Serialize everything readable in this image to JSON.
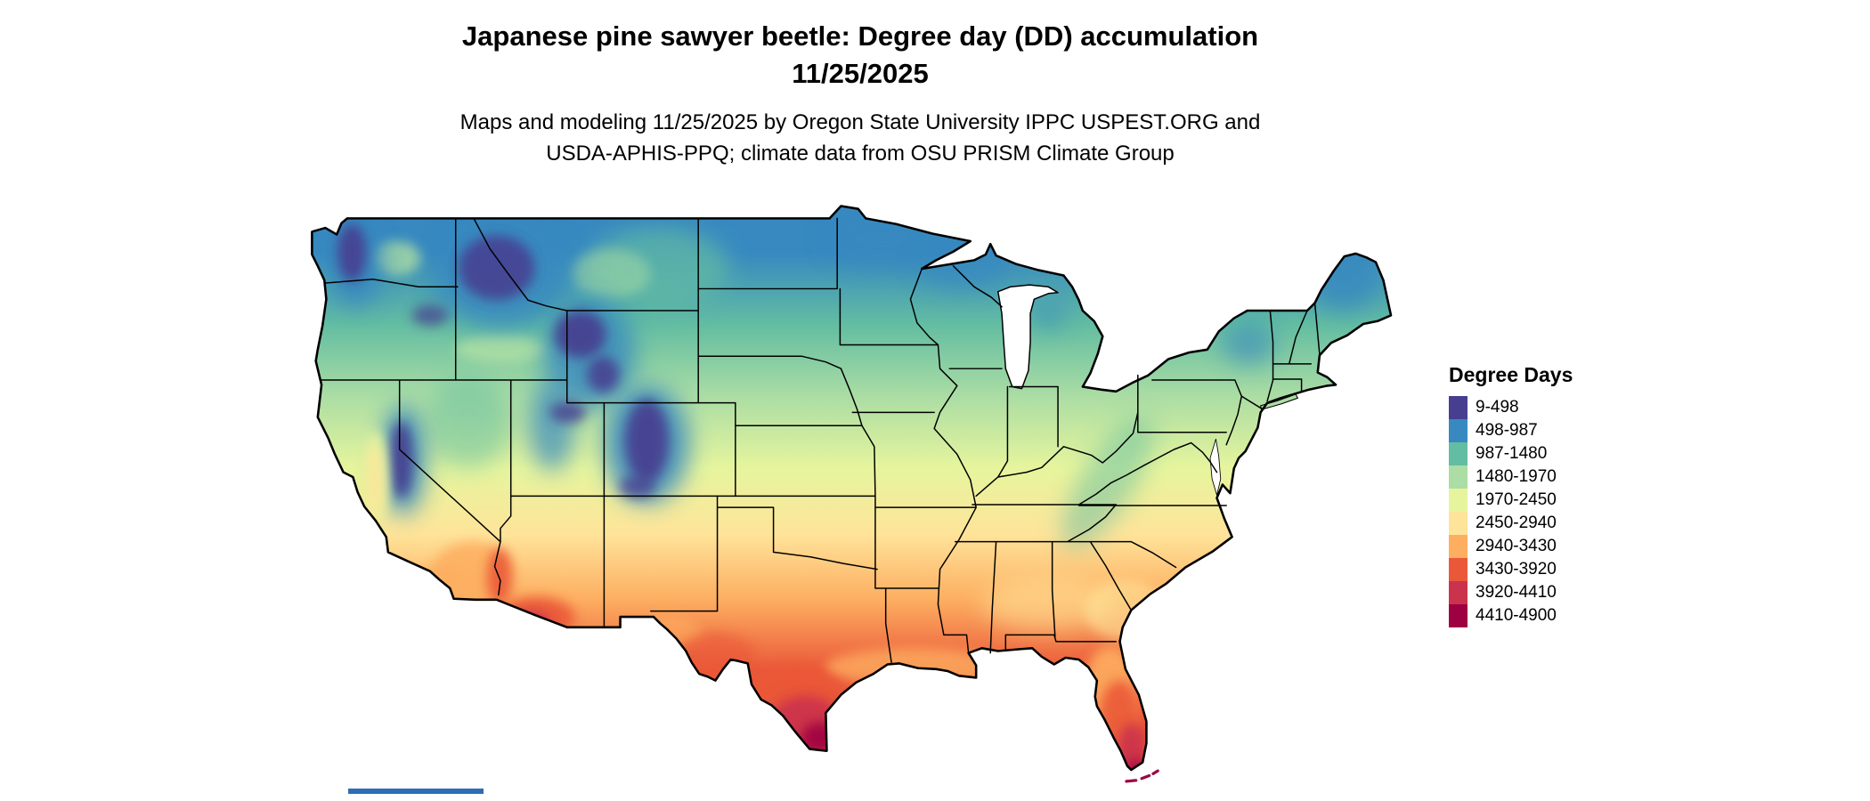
{
  "header": {
    "title_line1": "Japanese pine sawyer beetle: Degree day (DD) accumulation",
    "title_line2": "11/25/2025",
    "subtitle_line1": "Maps and modeling 11/25/2025 by Oregon State University IPPC USPEST.ORG and",
    "subtitle_line2": "USDA-APHIS-PPQ; climate data from OSU PRISM Climate Group"
  },
  "legend": {
    "title": "Degree Days",
    "classes": [
      {
        "label": "9-498",
        "color": "#473e8f"
      },
      {
        "label": "498-987",
        "color": "#3789c0"
      },
      {
        "label": "987-1480",
        "color": "#63bda2"
      },
      {
        "label": "1480-1970",
        "color": "#abdda4"
      },
      {
        "label": "1970-2450",
        "color": "#e6f59d"
      },
      {
        "label": "2450-2940",
        "color": "#fee49a"
      },
      {
        "label": "2940-3430",
        "color": "#fdae61"
      },
      {
        "label": "3430-3920",
        "color": "#ea5839"
      },
      {
        "label": "3920-4410",
        "color": "#cb334d"
      },
      {
        "label": "4410-4900",
        "color": "#9e0142"
      }
    ]
  },
  "decor": {
    "crop_bar_color": "#2e6db4"
  },
  "chart_data": {
    "type": "heatmap",
    "subtype": "choropleth_degree_day_map",
    "region": "contiguous United States",
    "title": "Japanese pine sawyer beetle: Degree day (DD) accumulation 11/25/2025",
    "legend_title": "Degree Days",
    "value_min": 9,
    "value_max": 4900,
    "bins": [
      {
        "range": "9-498",
        "color": "#473e8f"
      },
      {
        "range": "498-987",
        "color": "#3789c0"
      },
      {
        "range": "987-1480",
        "color": "#63bda2"
      },
      {
        "range": "1480-1970",
        "color": "#abdda4"
      },
      {
        "range": "1970-2450",
        "color": "#e6f59d"
      },
      {
        "range": "2450-2940",
        "color": "#fee49a"
      },
      {
        "range": "2940-3430",
        "color": "#fdae61"
      },
      {
        "range": "3430-3920",
        "color": "#ea5839"
      },
      {
        "range": "3920-4410",
        "color": "#cb334d"
      },
      {
        "range": "4410-4900",
        "color": "#9e0142"
      }
    ],
    "spatial_pattern": "Low accumulations (purple/blue) in Cascades, Sierra Nevada, Rocky Mountains and northern tier; high accumulations (red/maroon) in southern Arizona, south Texas and south Florida"
  }
}
